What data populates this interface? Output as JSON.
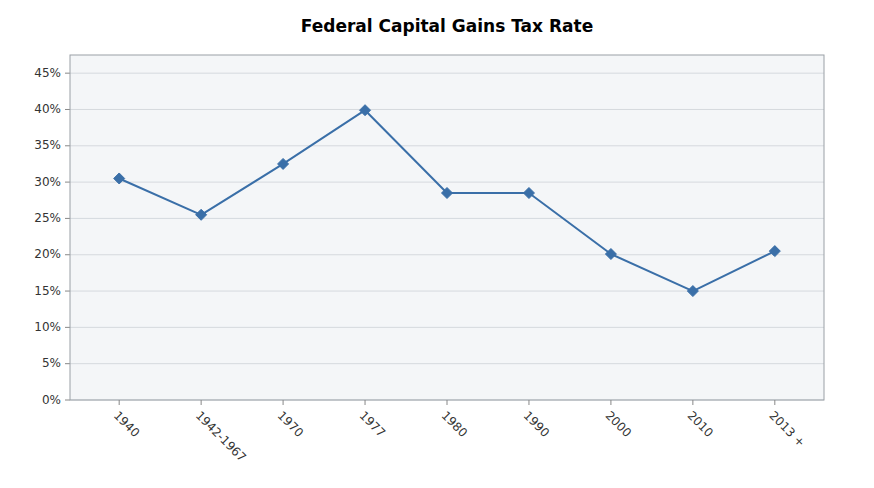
{
  "chart_data": {
    "type": "line",
    "title": "Federal Capital Gains Tax Rate",
    "categories": [
      "1940",
      "1942-1967",
      "1970",
      "1977",
      "1980",
      "1990",
      "2000",
      "2010",
      "2013 +"
    ],
    "values": [
      0.305,
      0.255,
      0.325,
      0.399,
      0.285,
      0.285,
      0.201,
      0.15,
      0.205
    ],
    "color": "#3A6FA8",
    "marker": "diamond",
    "ylim": [
      0.0,
      0.475
    ],
    "yticks": [
      {
        "value": 0.0,
        "label": "0%"
      },
      {
        "value": 0.05,
        "label": "5%"
      },
      {
        "value": 0.1,
        "label": "10%"
      },
      {
        "value": 0.15,
        "label": "15%"
      },
      {
        "value": 0.2,
        "label": "20%"
      },
      {
        "value": 0.25,
        "label": "25%"
      },
      {
        "value": 0.3,
        "label": "30%"
      },
      {
        "value": 0.35,
        "label": "35%"
      },
      {
        "value": 0.4,
        "label": "40%"
      },
      {
        "value": 0.45,
        "label": "45%"
      }
    ],
    "grid": true
  }
}
